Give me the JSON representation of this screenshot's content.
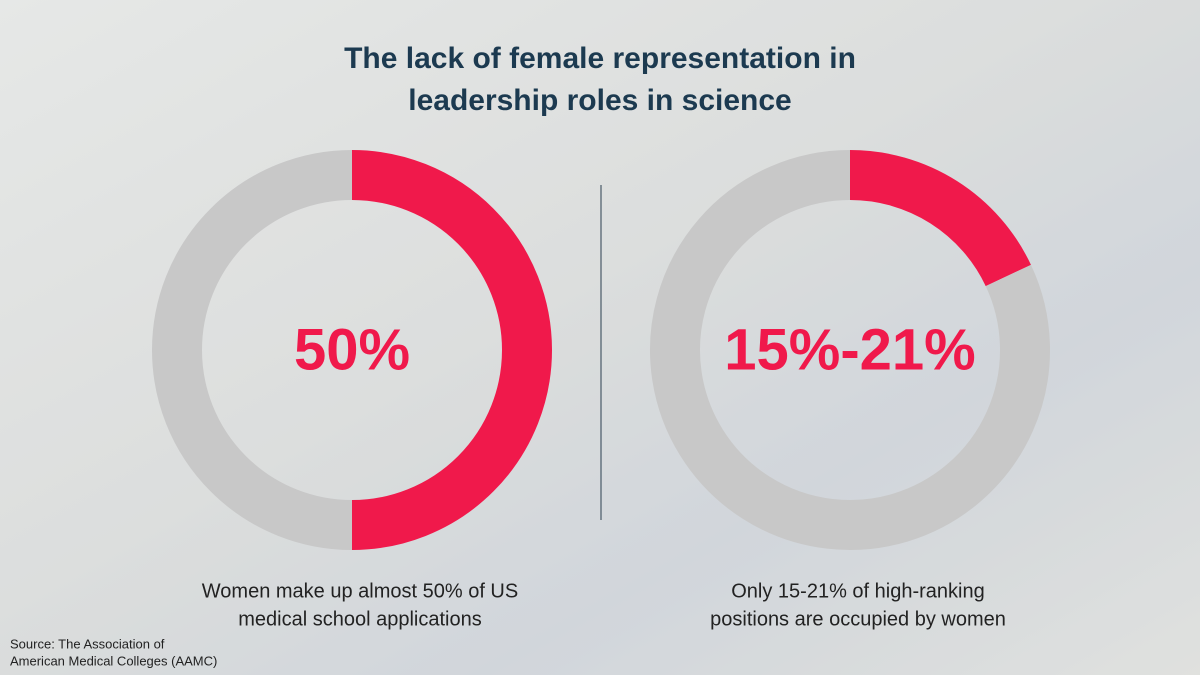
{
  "title": [
    "The lack of female representation in",
    "leadership roles in science"
  ],
  "source": [
    "Source: The Association of",
    "American Medical Colleges (AAMC)"
  ],
  "chart_data": [
    {
      "type": "donut",
      "values": [
        50,
        50
      ],
      "colors": [
        "#f0194b",
        "#c8c8c8"
      ],
      "center_label": "50%",
      "caption": [
        "Women make up almost 50% of US",
        "medical school applications"
      ]
    },
    {
      "type": "donut",
      "values": [
        18,
        82
      ],
      "colors": [
        "#f0194b",
        "#c8c8c8"
      ],
      "center_label": "15%-21%",
      "caption": [
        "Only 15-21% of high-ranking",
        "positions are occupied by women"
      ]
    }
  ]
}
